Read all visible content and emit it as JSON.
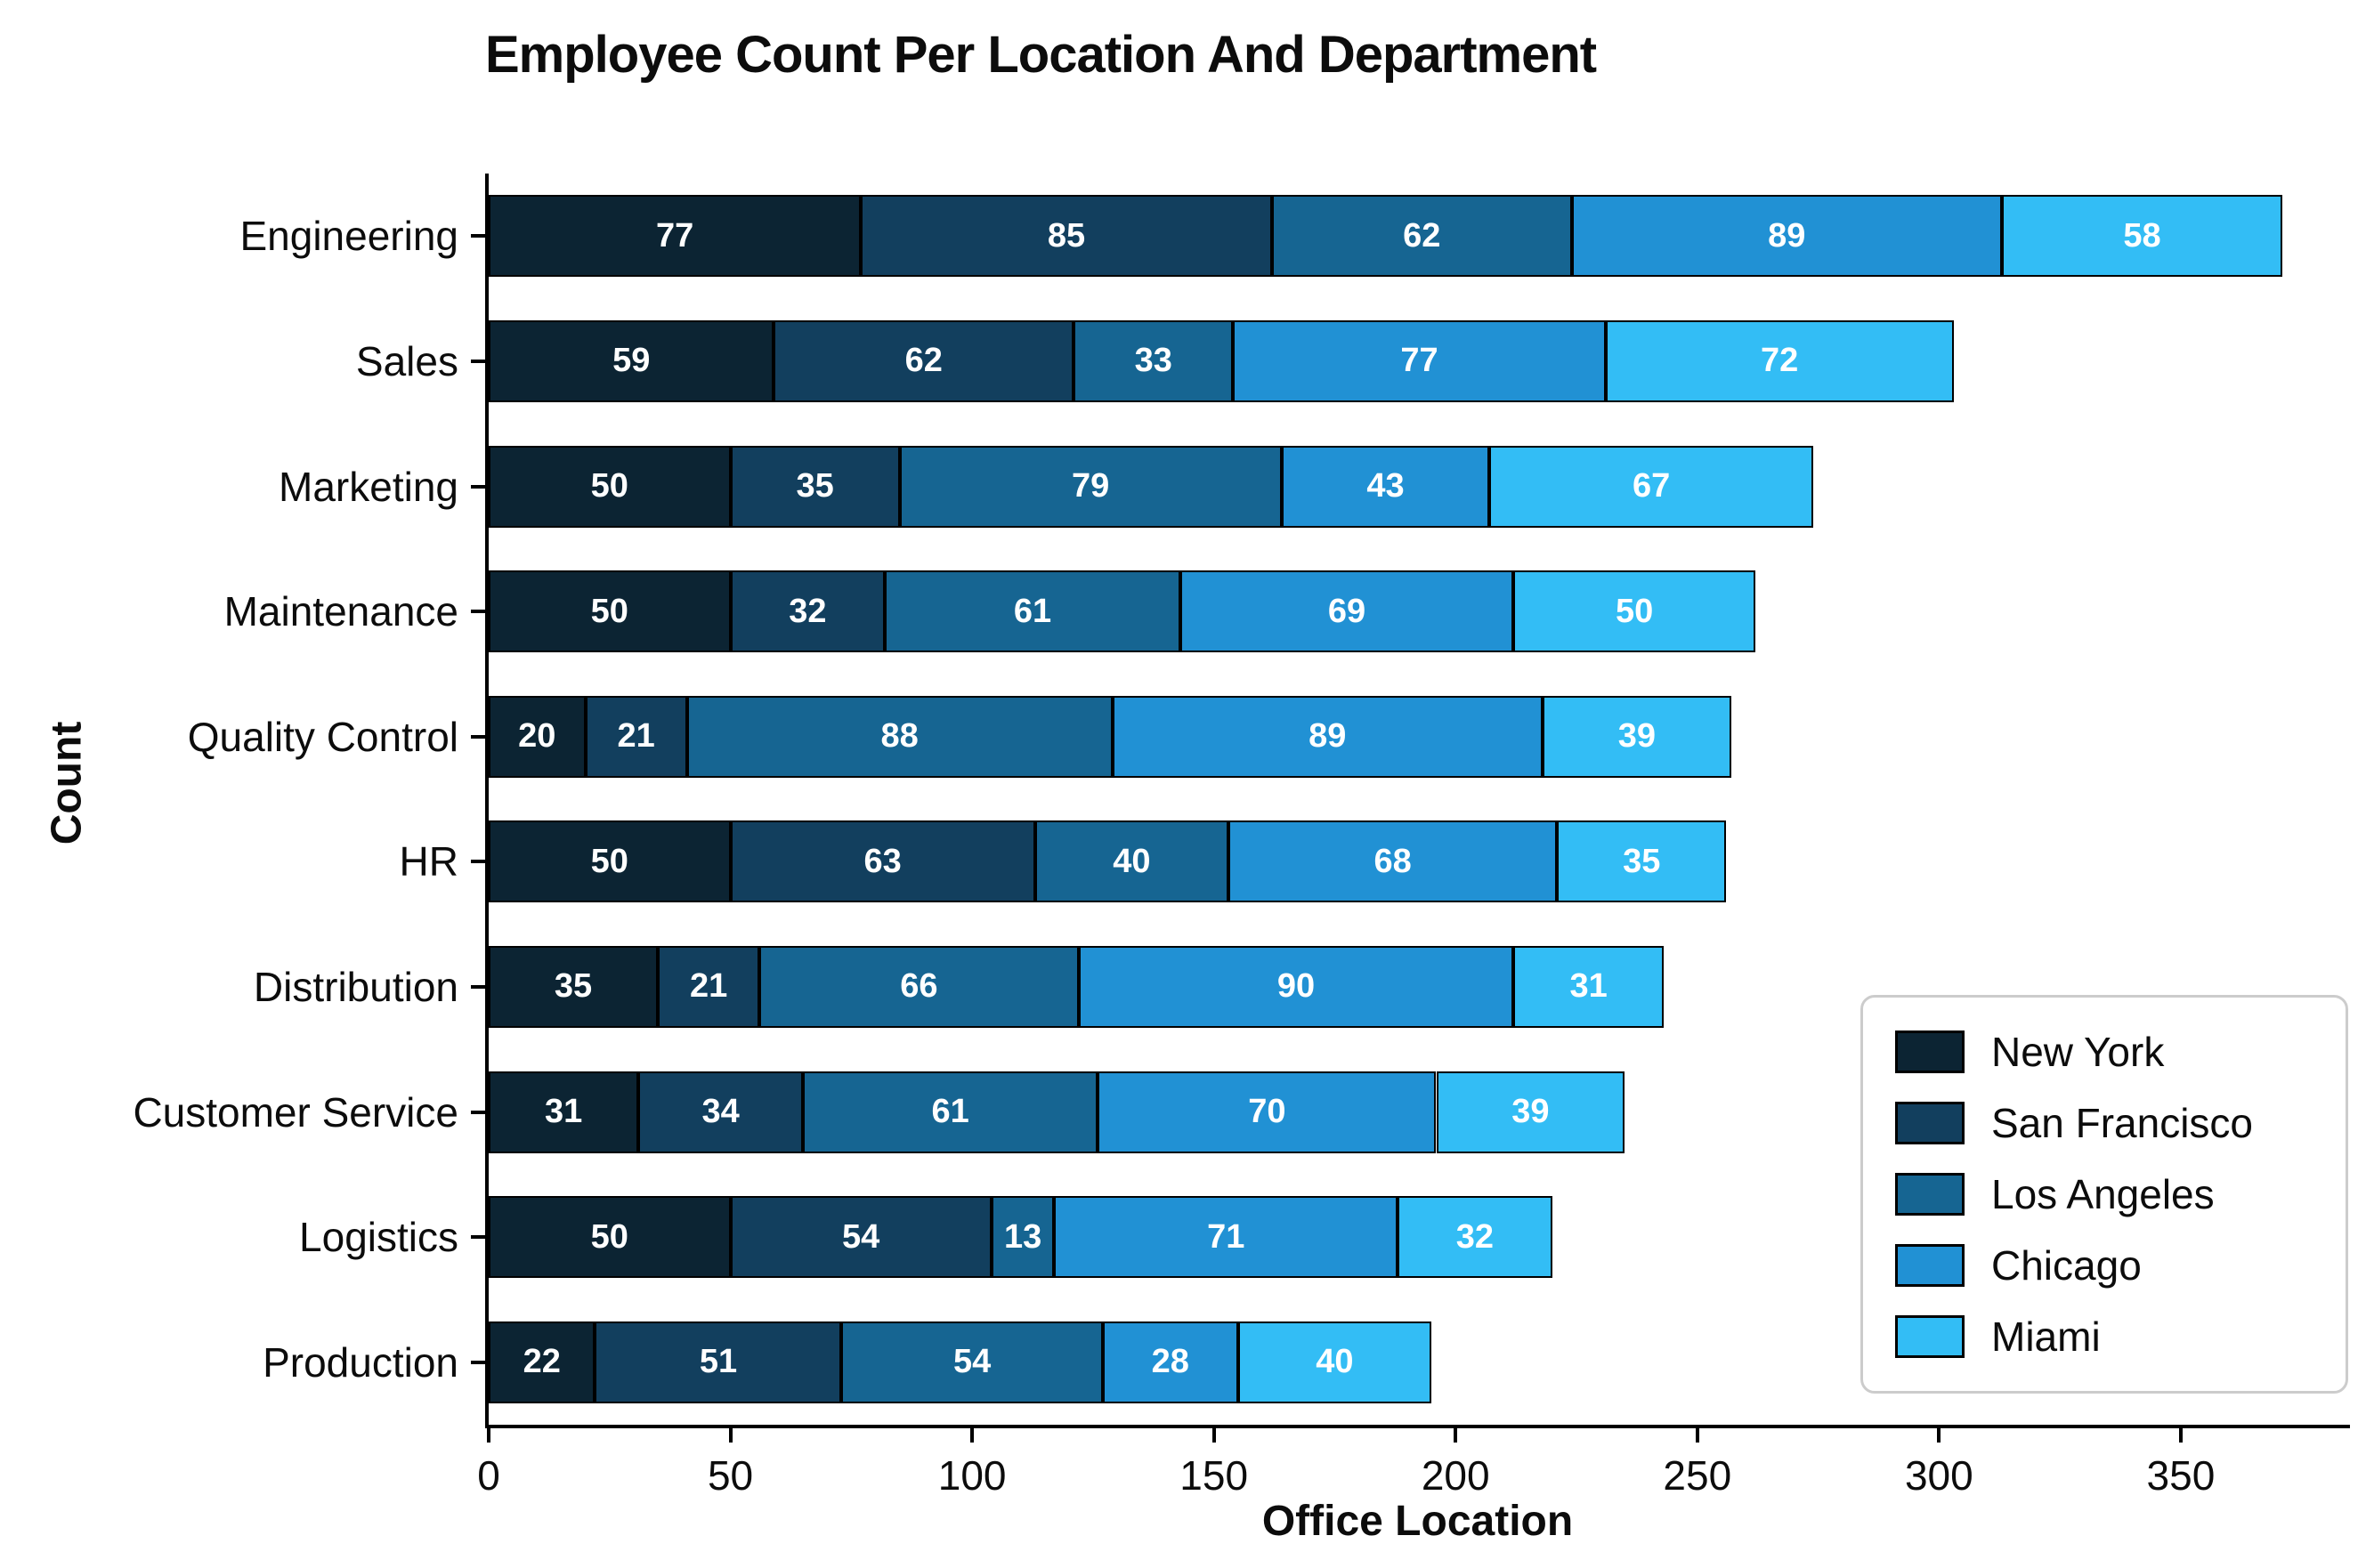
{
  "chart_data": {
    "type": "bar",
    "orientation": "horizontal",
    "stacked": true,
    "title": "Employee Count Per Location And Department",
    "xlabel": "Office Location",
    "ylabel": "Count",
    "categories": [
      "Engineering",
      "Sales",
      "Marketing",
      "Maintenance",
      "Quality Control",
      "HR",
      "Distribution",
      "Customer Service",
      "Logistics",
      "Production"
    ],
    "series": [
      {
        "name": "New York",
        "color": "#0c2433",
        "values": [
          77,
          59,
          50,
          50,
          20,
          50,
          35,
          31,
          50,
          22
        ]
      },
      {
        "name": "San Francisco",
        "color": "#123f5e",
        "values": [
          85,
          62,
          35,
          32,
          21,
          63,
          21,
          34,
          54,
          51
        ]
      },
      {
        "name": "Los Angeles",
        "color": "#166592",
        "values": [
          62,
          33,
          79,
          61,
          88,
          40,
          66,
          61,
          13,
          54
        ]
      },
      {
        "name": "Chicago",
        "color": "#2191d4",
        "values": [
          89,
          77,
          43,
          69,
          89,
          68,
          90,
          70,
          71,
          28
        ]
      },
      {
        "name": "Miami",
        "color": "#33bdf5",
        "values": [
          58,
          72,
          67,
          50,
          39,
          35,
          31,
          39,
          32,
          40
        ]
      }
    ],
    "totals": [
      371,
      303,
      274,
      262,
      257,
      256,
      243,
      235,
      220,
      195
    ],
    "xlim": [
      0,
      385
    ],
    "xticks": [
      0,
      50,
      100,
      150,
      200,
      250,
      300,
      350
    ],
    "bar_value_label_color": "#ffffff",
    "bar_edge_color": "#000000",
    "legend_position": "lower right",
    "grid": false,
    "background_color": "#ffffff"
  }
}
